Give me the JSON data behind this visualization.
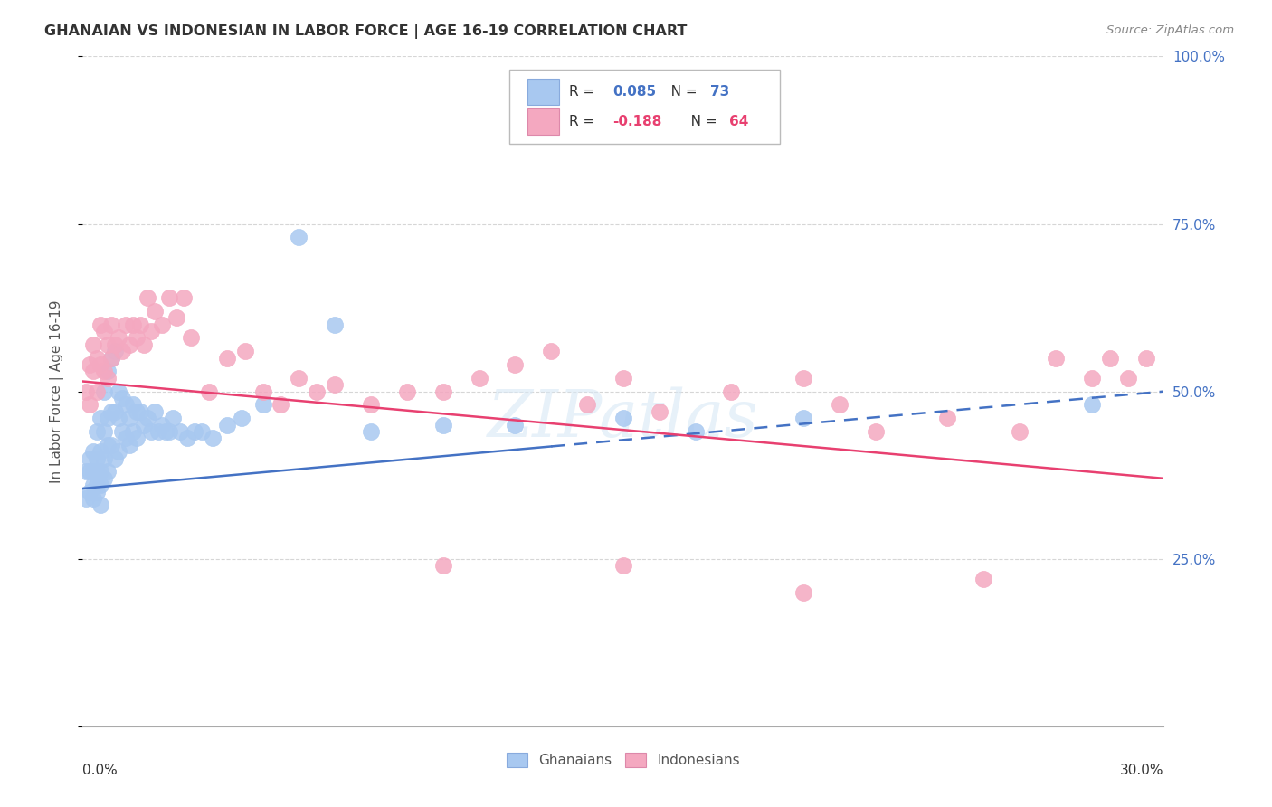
{
  "title": "GHANAIAN VS INDONESIAN IN LABOR FORCE | AGE 16-19 CORRELATION CHART",
  "source": "Source: ZipAtlas.com",
  "ylabel": "In Labor Force | Age 16-19",
  "xlim": [
    0.0,
    0.3
  ],
  "ylim": [
    0.0,
    1.0
  ],
  "ytick_values": [
    0.0,
    0.25,
    0.5,
    0.75,
    1.0
  ],
  "ytick_labels_right": [
    "",
    "25.0%",
    "50.0%",
    "75.0%",
    "100.0%"
  ],
  "ghanaian_color": "#A8C8F0",
  "indonesian_color": "#F4A8C0",
  "trend_ghanaian_color": "#4472C4",
  "trend_indonesian_color": "#E84070",
  "background_color": "#FFFFFF",
  "watermark_text": "ZIPatlas",
  "legend_r1": "R = 0.085",
  "legend_n1": "N = 73",
  "legend_r2": "R = -0.188",
  "legend_n2": "N = 64",
  "ghanaians_x": [
    0.001,
    0.001,
    0.002,
    0.002,
    0.002,
    0.003,
    0.003,
    0.003,
    0.003,
    0.004,
    0.004,
    0.004,
    0.004,
    0.004,
    0.005,
    0.005,
    0.005,
    0.005,
    0.005,
    0.006,
    0.006,
    0.006,
    0.006,
    0.007,
    0.007,
    0.007,
    0.007,
    0.008,
    0.008,
    0.008,
    0.009,
    0.009,
    0.009,
    0.01,
    0.01,
    0.01,
    0.011,
    0.011,
    0.012,
    0.012,
    0.013,
    0.013,
    0.014,
    0.014,
    0.015,
    0.015,
    0.016,
    0.017,
    0.018,
    0.019,
    0.02,
    0.021,
    0.022,
    0.023,
    0.024,
    0.025,
    0.027,
    0.029,
    0.031,
    0.033,
    0.036,
    0.04,
    0.044,
    0.05,
    0.06,
    0.07,
    0.08,
    0.1,
    0.12,
    0.15,
    0.17,
    0.2,
    0.28
  ],
  "ghanaians_y": [
    0.38,
    0.34,
    0.4,
    0.35,
    0.38,
    0.41,
    0.36,
    0.38,
    0.34,
    0.44,
    0.38,
    0.36,
    0.4,
    0.35,
    0.46,
    0.41,
    0.38,
    0.36,
    0.33,
    0.5,
    0.44,
    0.4,
    0.37,
    0.53,
    0.46,
    0.42,
    0.38,
    0.55,
    0.47,
    0.42,
    0.56,
    0.47,
    0.4,
    0.5,
    0.46,
    0.41,
    0.49,
    0.44,
    0.48,
    0.43,
    0.46,
    0.42,
    0.48,
    0.44,
    0.47,
    0.43,
    0.47,
    0.45,
    0.46,
    0.44,
    0.47,
    0.44,
    0.45,
    0.44,
    0.44,
    0.46,
    0.44,
    0.43,
    0.44,
    0.44,
    0.43,
    0.45,
    0.46,
    0.48,
    0.73,
    0.6,
    0.44,
    0.45,
    0.45,
    0.46,
    0.44,
    0.46,
    0.48
  ],
  "indonesians_x": [
    0.001,
    0.002,
    0.002,
    0.003,
    0.003,
    0.004,
    0.004,
    0.005,
    0.005,
    0.006,
    0.006,
    0.007,
    0.007,
    0.008,
    0.008,
    0.009,
    0.01,
    0.011,
    0.012,
    0.013,
    0.014,
    0.015,
    0.016,
    0.017,
    0.018,
    0.019,
    0.02,
    0.022,
    0.024,
    0.026,
    0.028,
    0.03,
    0.035,
    0.04,
    0.045,
    0.05,
    0.055,
    0.06,
    0.065,
    0.07,
    0.08,
    0.09,
    0.1,
    0.11,
    0.12,
    0.13,
    0.14,
    0.15,
    0.16,
    0.18,
    0.2,
    0.21,
    0.22,
    0.24,
    0.26,
    0.27,
    0.28,
    0.285,
    0.29,
    0.295,
    0.1,
    0.15,
    0.2,
    0.25
  ],
  "indonesians_y": [
    0.5,
    0.54,
    0.48,
    0.57,
    0.53,
    0.55,
    0.5,
    0.6,
    0.54,
    0.59,
    0.53,
    0.57,
    0.52,
    0.6,
    0.55,
    0.57,
    0.58,
    0.56,
    0.6,
    0.57,
    0.6,
    0.58,
    0.6,
    0.57,
    0.64,
    0.59,
    0.62,
    0.6,
    0.64,
    0.61,
    0.64,
    0.58,
    0.5,
    0.55,
    0.56,
    0.5,
    0.48,
    0.52,
    0.5,
    0.51,
    0.48,
    0.5,
    0.5,
    0.52,
    0.54,
    0.56,
    0.48,
    0.52,
    0.47,
    0.5,
    0.52,
    0.48,
    0.44,
    0.46,
    0.44,
    0.55,
    0.52,
    0.55,
    0.52,
    0.55,
    0.24,
    0.24,
    0.2,
    0.22
  ]
}
